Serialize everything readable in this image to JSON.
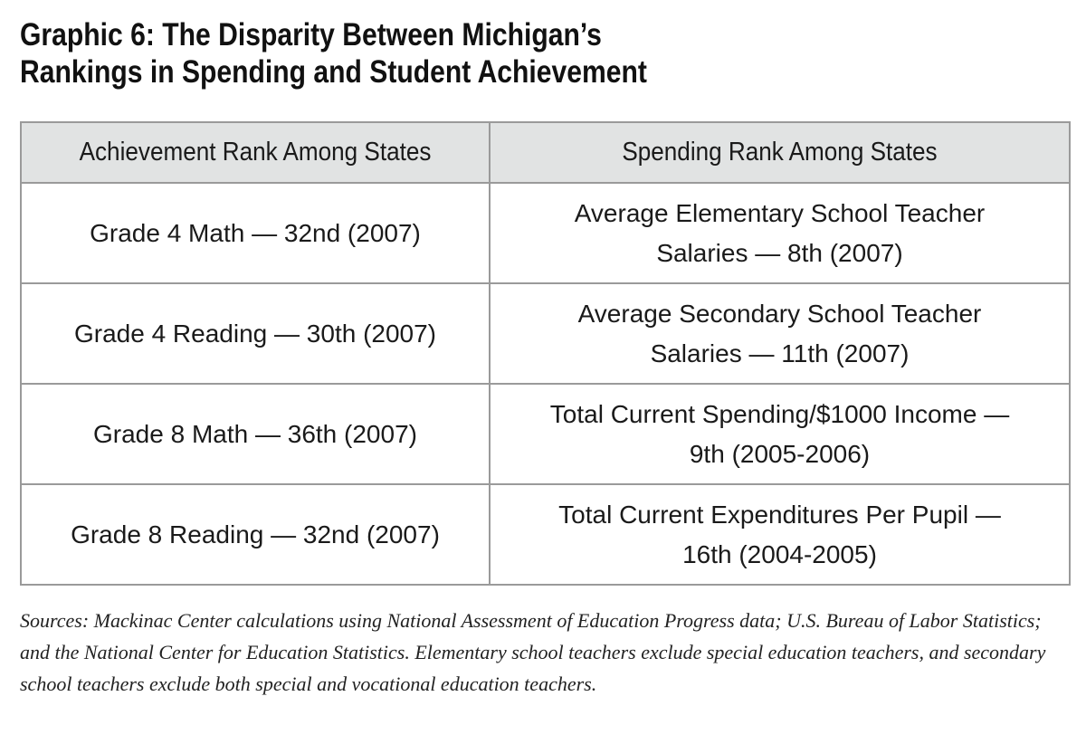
{
  "title": {
    "line1": "Graphic 6: The Disparity Between Michigan’s",
    "line2": "Rankings in Spending and Student Achievement"
  },
  "table": {
    "headers": [
      "Achievement Rank Among States",
      "Spending Rank Among States"
    ],
    "rows": [
      {
        "achievement": "Grade 4 Math — 32nd (2007)",
        "spending1": "Average Elementary School Teacher",
        "spending2": "Salaries — 8th (2007)"
      },
      {
        "achievement": "Grade 4 Reading — 30th (2007)",
        "spending1": "Average Secondary School Teacher",
        "spending2": "Salaries — 11th (2007)"
      },
      {
        "achievement": "Grade 8 Math — 36th (2007)",
        "spending1": "Total Current Spending/$1000 Income —",
        "spending2": "9th (2005-2006)"
      },
      {
        "achievement": "Grade 8 Reading — 32nd (2007)",
        "spending1": "Total Current Expenditures Per Pupil —",
        "spending2": "16th (2004-2005)"
      }
    ]
  },
  "sources": "Sources: Mackinac Center calculations using National Assessment of Education Progress data; U.S. Bureau of Labor Statistics; and the National Center for Education Statistics. Elementary school teachers exclude special education teachers, and secondary school teachers exclude both special and vocational education teachers.",
  "colors": {
    "header_bg": "#e1e3e3",
    "border": "#9a9a9a"
  }
}
